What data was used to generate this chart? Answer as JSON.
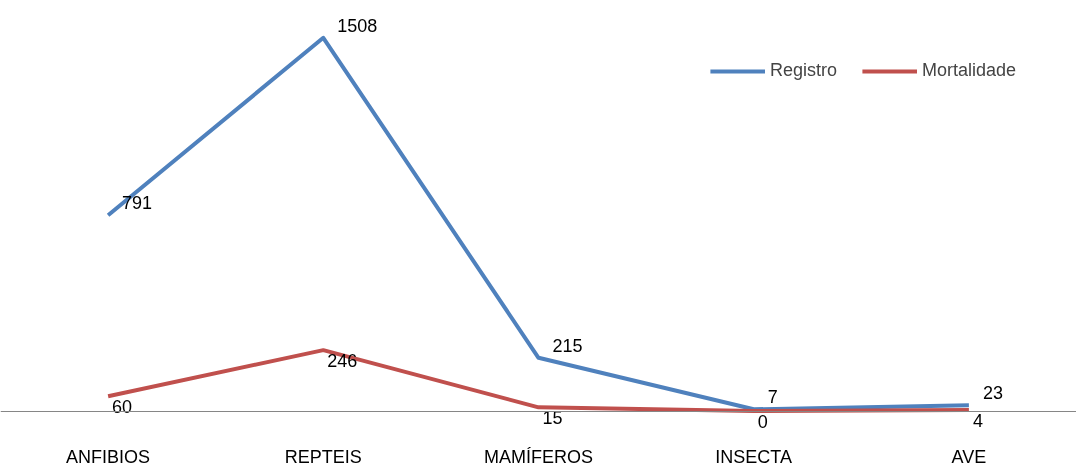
{
  "chart_data": {
    "type": "line",
    "categories": [
      "ANFIBIOS",
      "REPTEIS",
      "MAMÍFEROS",
      "INSECTA",
      "AVE"
    ],
    "series": [
      {
        "name": "Registro",
        "color": "#4f81bd",
        "values": [
          791,
          1508,
          215,
          7,
          23
        ]
      },
      {
        "name": "Mortalidade",
        "color": "#c0504d",
        "values": [
          60,
          246,
          15,
          0,
          4
        ]
      }
    ],
    "data_labels": true,
    "legend": "top right",
    "grid": false,
    "marker": "none",
    "line_style": "solid"
  }
}
